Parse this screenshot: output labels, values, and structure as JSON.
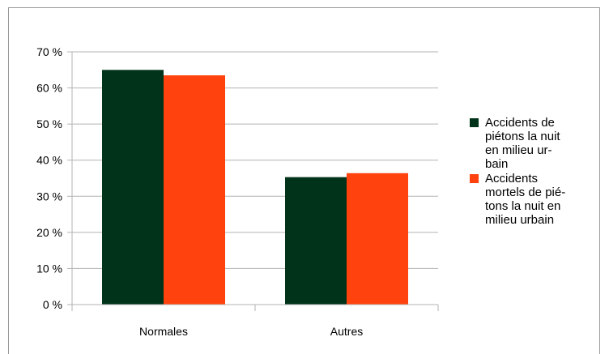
{
  "chart_data": {
    "type": "bar",
    "categories": [
      "Normales",
      "Autres"
    ],
    "series": [
      {
        "name": "Accidents de\npiétons la nuit\nen milieu ur-\nbain",
        "values": [
          65,
          35.3
        ],
        "color": "#003319"
      },
      {
        "name": "Accidents\nmortels de pié-\ntons la nuit en\nmilieu urbain",
        "values": [
          63.5,
          36.4
        ],
        "color": "#ff420e"
      }
    ],
    "ylim": [
      0,
      70
    ],
    "yticks": [
      "0 %",
      "10 %",
      "20 %",
      "30 %",
      "40 %",
      "50 %",
      "60 %",
      "70 %"
    ],
    "grid": true,
    "legend_position": "right",
    "title": "",
    "xlabel": "",
    "ylabel": ""
  }
}
